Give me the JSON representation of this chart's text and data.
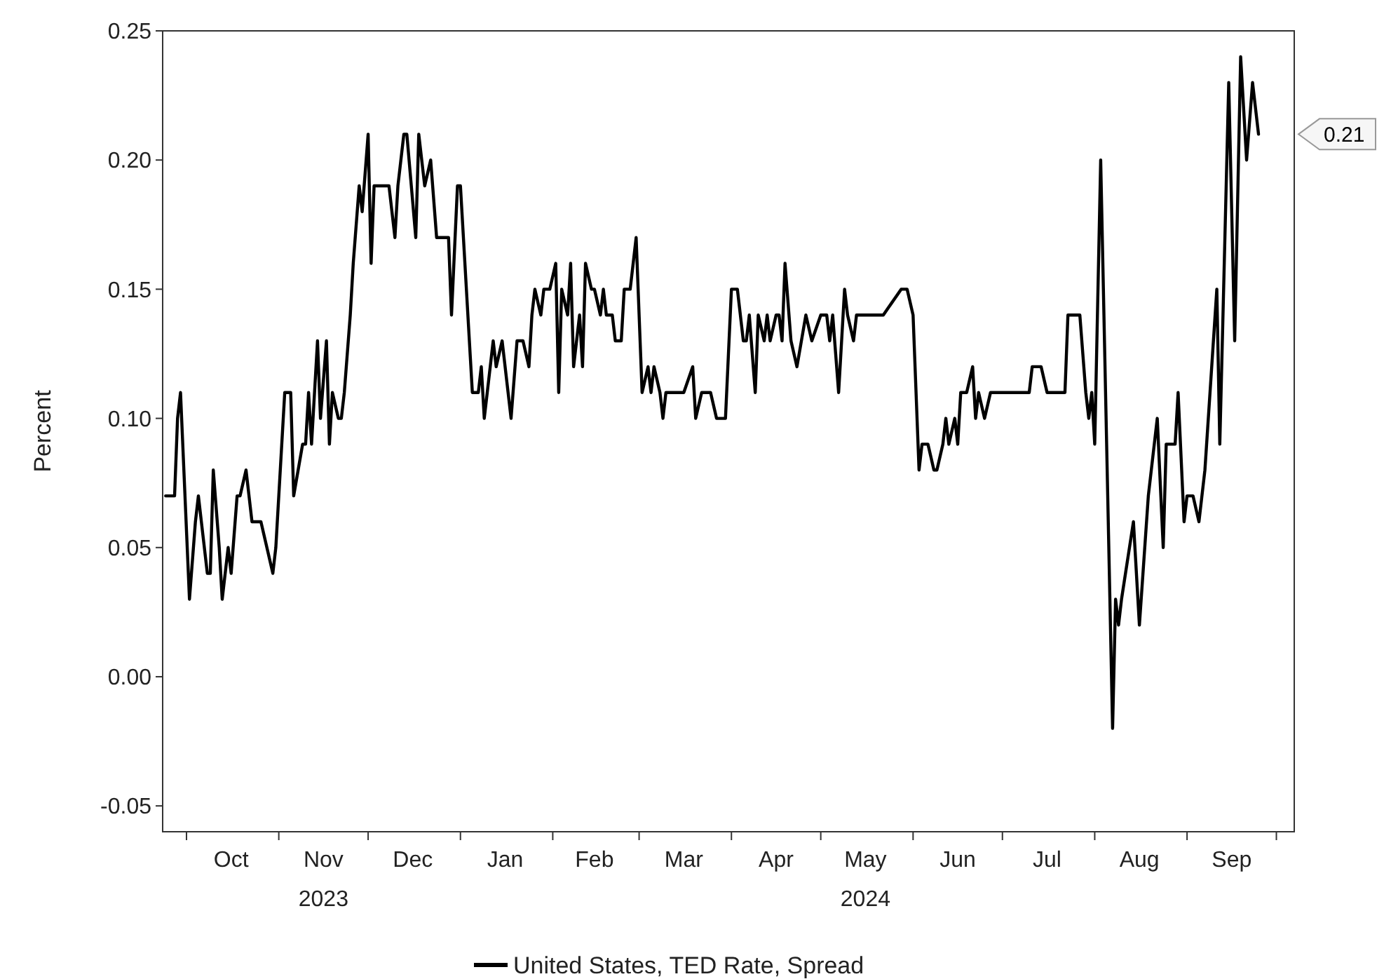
{
  "chart_data": {
    "type": "line",
    "ylabel": "Percent",
    "legend": "bottom",
    "grid": false,
    "marker": "none",
    "line_style": "solid",
    "xlim": [
      "2023-09-23",
      "2024-10-07"
    ],
    "ylim": [
      -0.06,
      0.25
    ],
    "yticks": [
      {
        "value": -0.05,
        "label": "-0.05"
      },
      {
        "value": 0,
        "label": "0.00"
      },
      {
        "value": 0.05,
        "label": "0.05"
      },
      {
        "value": 0.1,
        "label": "0.10"
      },
      {
        "value": 0.15,
        "label": "0.15"
      },
      {
        "value": 0.2,
        "label": "0.20"
      },
      {
        "value": 0.25,
        "label": "0.25"
      }
    ],
    "xticks": [
      {
        "value": "2023-10-01",
        "label": null
      },
      {
        "value": "2023-11-01",
        "label": null
      },
      {
        "value": "2023-12-01",
        "label": null
      },
      {
        "value": "2024-01-01",
        "label": null
      },
      {
        "value": "2024-02-01",
        "label": null
      },
      {
        "value": "2024-03-01",
        "label": null
      },
      {
        "value": "2024-04-01",
        "label": null
      },
      {
        "value": "2024-05-01",
        "label": null
      },
      {
        "value": "2024-06-01",
        "label": null
      },
      {
        "value": "2024-07-01",
        "label": null
      },
      {
        "value": "2024-08-01",
        "label": null
      },
      {
        "value": "2024-09-01",
        "label": null
      },
      {
        "value": "2024-10-01",
        "label": null
      },
      {
        "value": "2023-10-16",
        "label": "Oct"
      },
      {
        "value": "2023-11-16",
        "label": "Nov\n2023"
      },
      {
        "value": "2023-12-16",
        "label": "Dec"
      },
      {
        "value": "2024-01-16",
        "label": "Jan"
      },
      {
        "value": "2024-02-15",
        "label": "Feb"
      },
      {
        "value": "2024-03-16",
        "label": "Mar"
      },
      {
        "value": "2024-04-16",
        "label": "Apr"
      },
      {
        "value": "2024-05-16",
        "label": "May\n2024"
      },
      {
        "value": "2024-06-16",
        "label": "Jun"
      },
      {
        "value": "2024-07-16",
        "label": "Jul"
      },
      {
        "value": "2024-08-16",
        "label": "Aug"
      },
      {
        "value": "2024-09-16",
        "label": "Sep"
      }
    ],
    "annotations": [
      "0.21"
    ],
    "x": [
      "2023-09-24",
      "2023-09-27",
      "2023-09-28",
      "2023-09-29",
      "2023-10-02",
      "2023-10-04",
      "2023-10-05",
      "2023-10-08",
      "2023-10-09",
      "2023-10-10",
      "2023-10-12",
      "2023-10-13",
      "2023-10-15",
      "2023-10-16",
      "2023-10-18",
      "2023-10-19",
      "2023-10-21",
      "2023-10-23",
      "2023-10-26",
      "2023-10-30",
      "2023-10-31",
      "2023-11-03",
      "2023-11-05",
      "2023-11-06",
      "2023-11-09",
      "2023-11-10",
      "2023-11-11",
      "2023-11-12",
      "2023-11-14",
      "2023-11-15",
      "2023-11-17",
      "2023-11-18",
      "2023-11-19",
      "2023-11-21",
      "2023-11-22",
      "2023-11-23",
      "2023-11-25",
      "2023-11-26",
      "2023-11-28",
      "2023-11-29",
      "2023-12-01",
      "2023-12-02",
      "2023-12-03",
      "2023-12-08",
      "2023-12-10",
      "2023-12-11",
      "2023-12-13",
      "2023-12-14",
      "2023-12-17",
      "2023-12-18",
      "2023-12-20",
      "2023-12-22",
      "2023-12-24",
      "2023-12-28",
      "2023-12-29",
      "2023-12-31",
      "2024-01-01",
      "2024-01-04",
      "2024-01-05",
      "2024-01-07",
      "2024-01-08",
      "2024-01-09",
      "2024-01-11",
      "2024-01-12",
      "2024-01-13",
      "2024-01-15",
      "2024-01-17",
      "2024-01-18",
      "2024-01-20",
      "2024-01-22",
      "2024-01-24",
      "2024-01-25",
      "2024-01-26",
      "2024-01-28",
      "2024-01-29",
      "2024-01-31",
      "2024-02-02",
      "2024-02-03",
      "2024-02-04",
      "2024-02-06",
      "2024-02-07",
      "2024-02-08",
      "2024-02-10",
      "2024-02-11",
      "2024-02-12",
      "2024-02-14",
      "2024-02-15",
      "2024-02-17",
      "2024-02-18",
      "2024-02-19",
      "2024-02-21",
      "2024-02-22",
      "2024-02-24",
      "2024-02-25",
      "2024-02-27",
      "2024-02-29",
      "2024-03-02",
      "2024-03-04",
      "2024-03-05",
      "2024-03-06",
      "2024-03-08",
      "2024-03-09",
      "2024-03-10",
      "2024-03-16",
      "2024-03-19",
      "2024-03-20",
      "2024-03-22",
      "2024-03-25",
      "2024-03-27",
      "2024-03-28",
      "2024-03-30",
      "2024-04-01",
      "2024-04-03",
      "2024-04-05",
      "2024-04-06",
      "2024-04-07",
      "2024-04-09",
      "2024-04-10",
      "2024-04-12",
      "2024-04-13",
      "2024-04-14",
      "2024-04-16",
      "2024-04-17",
      "2024-04-18",
      "2024-04-19",
      "2024-04-21",
      "2024-04-23",
      "2024-04-26",
      "2024-04-28",
      "2024-05-01",
      "2024-05-03",
      "2024-05-04",
      "2024-05-05",
      "2024-05-07",
      "2024-05-09",
      "2024-05-10",
      "2024-05-12",
      "2024-05-13",
      "2024-05-16",
      "2024-05-17",
      "2024-05-19",
      "2024-05-22",
      "2024-05-28",
      "2024-05-30",
      "2024-06-01",
      "2024-06-03",
      "2024-06-04",
      "2024-06-06",
      "2024-06-08",
      "2024-06-09",
      "2024-06-11",
      "2024-06-12",
      "2024-06-13",
      "2024-06-15",
      "2024-06-16",
      "2024-06-17",
      "2024-06-19",
      "2024-06-21",
      "2024-06-22",
      "2024-06-23",
      "2024-06-25",
      "2024-06-27",
      "2024-07-10",
      "2024-07-11",
      "2024-07-14",
      "2024-07-16",
      "2024-07-22",
      "2024-07-23",
      "2024-07-27",
      "2024-07-29",
      "2024-07-30",
      "2024-07-31",
      "2024-08-01",
      "2024-08-03",
      "2024-08-07",
      "2024-08-08",
      "2024-08-09",
      "2024-08-10",
      "2024-08-14",
      "2024-08-16",
      "2024-08-19",
      "2024-08-22",
      "2024-08-24",
      "2024-08-25",
      "2024-08-28",
      "2024-08-29",
      "2024-08-31",
      "2024-09-01",
      "2024-09-03",
      "2024-09-05",
      "2024-09-07",
      "2024-09-11",
      "2024-09-12",
      "2024-09-15",
      "2024-09-17",
      "2024-09-19",
      "2024-09-21",
      "2024-09-23",
      "2024-09-25"
    ],
    "series": [
      {
        "name": "United States, TED Rate, Spread",
        "color": "#000000",
        "values": [
          0.07,
          0.07,
          0.1,
          0.11,
          0.03,
          0.06,
          0.07,
          0.04,
          0.04,
          0.08,
          0.05,
          0.03,
          0.05,
          0.04,
          0.07,
          0.07,
          0.08,
          0.06,
          0.06,
          0.04,
          0.05,
          0.11,
          0.11,
          0.07,
          0.09,
          0.09,
          0.11,
          0.09,
          0.13,
          0.1,
          0.13,
          0.09,
          0.11,
          0.1,
          0.1,
          0.11,
          0.14,
          0.16,
          0.19,
          0.18,
          0.21,
          0.16,
          0.19,
          0.19,
          0.17,
          0.19,
          0.21,
          0.21,
          0.17,
          0.21,
          0.19,
          0.2,
          0.17,
          0.17,
          0.14,
          0.19,
          0.19,
          0.13,
          0.11,
          0.11,
          0.12,
          0.1,
          0.12,
          0.13,
          0.12,
          0.13,
          0.11,
          0.1,
          0.13,
          0.13,
          0.12,
          0.14,
          0.15,
          0.14,
          0.15,
          0.15,
          0.16,
          0.11,
          0.15,
          0.14,
          0.16,
          0.12,
          0.14,
          0.12,
          0.16,
          0.15,
          0.15,
          0.14,
          0.15,
          0.14,
          0.14,
          0.13,
          0.13,
          0.15,
          0.15,
          0.17,
          0.11,
          0.12,
          0.11,
          0.12,
          0.11,
          0.1,
          0.11,
          0.11,
          0.12,
          0.1,
          0.11,
          0.11,
          0.1,
          0.1,
          0.1,
          0.15,
          0.15,
          0.13,
          0.13,
          0.14,
          0.11,
          0.14,
          0.13,
          0.14,
          0.13,
          0.14,
          0.14,
          0.13,
          0.16,
          0.13,
          0.12,
          0.14,
          0.13,
          0.14,
          0.14,
          0.13,
          0.14,
          0.11,
          0.15,
          0.14,
          0.13,
          0.14,
          0.14,
          0.14,
          0.14,
          0.14,
          0.15,
          0.15,
          0.14,
          0.08,
          0.09,
          0.09,
          0.08,
          0.08,
          0.09,
          0.1,
          0.09,
          0.1,
          0.09,
          0.11,
          0.11,
          0.12,
          0.1,
          0.11,
          0.1,
          0.11,
          0.11,
          0.12,
          0.12,
          0.11,
          0.11,
          0.14,
          0.14,
          0.11,
          0.1,
          0.11,
          0.09,
          0.2,
          -0.02,
          0.03,
          0.02,
          0.03,
          0.06,
          0.02,
          0.07,
          0.1,
          0.05,
          0.09,
          0.09,
          0.11,
          0.06,
          0.07,
          0.07,
          0.06,
          0.08,
          0.15,
          0.09,
          0.23,
          0.13,
          0.24,
          0.2,
          0.23,
          0.21
        ]
      }
    ]
  }
}
